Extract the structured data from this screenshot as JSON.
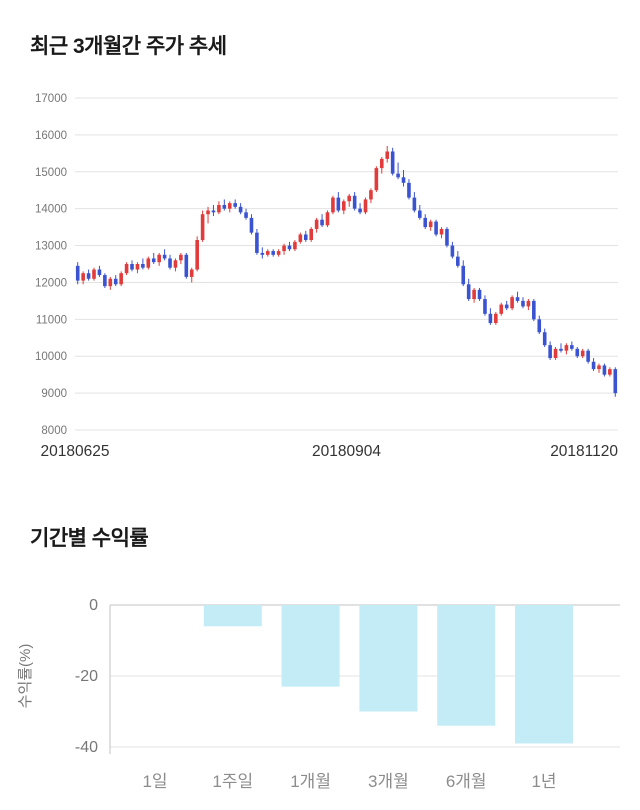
{
  "sections": {
    "price_trend": {
      "title": "최근 3개월간 주가 추세"
    },
    "returns": {
      "title": "기간별 수익률"
    }
  },
  "colors": {
    "candle_up": "#e13b3b",
    "candle_down": "#3a53d0",
    "grid": "#e3e3e3",
    "zero_line": "#c3c3c3",
    "axis_text": "#777777",
    "date_text": "#333333",
    "category_text": "#8c8c8c",
    "bar_fill": "#c3ecf7"
  },
  "chart_data": [
    {
      "type": "candlestick",
      "title": "최근 3개월간 주가 추세",
      "ylim": [
        8000,
        17000
      ],
      "yticks": [
        8000,
        9000,
        10000,
        11000,
        12000,
        13000,
        14000,
        15000,
        16000,
        17000
      ],
      "xticks": [
        "20180625",
        "20180904",
        "20181120"
      ],
      "legend_position": "none",
      "grid": true,
      "up_color": "#e13b3b",
      "down_color": "#3a53d0",
      "candles": [
        [
          12450,
          12550,
          11950,
          12050
        ],
        [
          12050,
          12300,
          11950,
          12250
        ],
        [
          12250,
          12350,
          12050,
          12100
        ],
        [
          12100,
          12400,
          12050,
          12350
        ],
        [
          12350,
          12450,
          12150,
          12200
        ],
        [
          12200,
          12250,
          11850,
          11900
        ],
        [
          11900,
          12150,
          11800,
          12100
        ],
        [
          12100,
          12200,
          11900,
          11950
        ],
        [
          11950,
          12300,
          11900,
          12250
        ],
        [
          12250,
          12550,
          12200,
          12500
        ],
        [
          12500,
          12600,
          12300,
          12350
        ],
        [
          12350,
          12550,
          12250,
          12500
        ],
        [
          12500,
          12650,
          12350,
          12400
        ],
        [
          12400,
          12700,
          12350,
          12650
        ],
        [
          12650,
          12800,
          12500,
          12550
        ],
        [
          12550,
          12800,
          12450,
          12750
        ],
        [
          12750,
          12900,
          12600,
          12650
        ],
        [
          12650,
          12750,
          12350,
          12400
        ],
        [
          12400,
          12650,
          12300,
          12600
        ],
        [
          12600,
          12800,
          12500,
          12750
        ],
        [
          12750,
          12800,
          12100,
          12150
        ],
        [
          12150,
          12400,
          12000,
          12350
        ],
        [
          12350,
          13250,
          12300,
          13150
        ],
        [
          13150,
          13950,
          13100,
          13850
        ],
        [
          13850,
          14050,
          13600,
          13950
        ],
        [
          13950,
          14100,
          13800,
          13900
        ],
        [
          13900,
          14200,
          13850,
          14100
        ],
        [
          14100,
          14250,
          13950,
          14000
        ],
        [
          14000,
          14200,
          13900,
          14150
        ],
        [
          14150,
          14250,
          14000,
          14050
        ],
        [
          14050,
          14150,
          13850,
          13900
        ],
        [
          13900,
          14000,
          13700,
          13750
        ],
        [
          13750,
          13850,
          13300,
          13350
        ],
        [
          13350,
          13450,
          12750,
          12800
        ],
        [
          12800,
          12950,
          12650,
          12750
        ],
        [
          12750,
          12900,
          12700,
          12850
        ],
        [
          12850,
          12900,
          12700,
          12750
        ],
        [
          12750,
          12900,
          12700,
          12850
        ],
        [
          12850,
          13050,
          12750,
          13000
        ],
        [
          13000,
          13100,
          12850,
          12900
        ],
        [
          12900,
          13150,
          12850,
          13100
        ],
        [
          13100,
          13350,
          13050,
          13300
        ],
        [
          13300,
          13400,
          13100,
          13150
        ],
        [
          13150,
          13500,
          13100,
          13450
        ],
        [
          13450,
          13750,
          13350,
          13700
        ],
        [
          13700,
          13850,
          13500,
          13550
        ],
        [
          13550,
          13950,
          13500,
          13900
        ],
        [
          13900,
          14350,
          13850,
          14300
        ],
        [
          14300,
          14450,
          13900,
          13950
        ],
        [
          13950,
          14250,
          13850,
          14200
        ],
        [
          14200,
          14400,
          14050,
          14350
        ],
        [
          14350,
          14450,
          13950,
          14000
        ],
        [
          14000,
          14150,
          13850,
          13900
        ],
        [
          13900,
          14300,
          13850,
          14250
        ],
        [
          14250,
          14550,
          14150,
          14500
        ],
        [
          14500,
          15150,
          14450,
          15100
        ],
        [
          15100,
          15400,
          14950,
          15350
        ],
        [
          15350,
          15700,
          15250,
          15550
        ],
        [
          15550,
          15650,
          14900,
          14950
        ],
        [
          14950,
          15250,
          14800,
          14850
        ],
        [
          14850,
          15050,
          14600,
          14700
        ],
        [
          14700,
          14800,
          14250,
          14300
        ],
        [
          14300,
          14450,
          13900,
          13950
        ],
        [
          13950,
          14100,
          13700,
          13750
        ],
        [
          13750,
          13850,
          13450,
          13500
        ],
        [
          13500,
          13700,
          13400,
          13650
        ],
        [
          13650,
          13700,
          13250,
          13300
        ],
        [
          13300,
          13500,
          13200,
          13450
        ],
        [
          13450,
          13500,
          12950,
          13000
        ],
        [
          13000,
          13100,
          12650,
          12700
        ],
        [
          12700,
          12850,
          12400,
          12450
        ],
        [
          12450,
          12600,
          11900,
          11950
        ],
        [
          11950,
          12100,
          11500,
          11550
        ],
        [
          11550,
          11850,
          11450,
          11800
        ],
        [
          11800,
          11850,
          11500,
          11550
        ],
        [
          11550,
          11650,
          11100,
          11150
        ],
        [
          11150,
          11300,
          10850,
          10900
        ],
        [
          10900,
          11200,
          10850,
          11150
        ],
        [
          11150,
          11450,
          11100,
          11400
        ],
        [
          11400,
          11500,
          11250,
          11300
        ],
        [
          11300,
          11650,
          11250,
          11600
        ],
        [
          11600,
          11750,
          11450,
          11500
        ],
        [
          11500,
          11600,
          11300,
          11350
        ],
        [
          11350,
          11550,
          11250,
          11500
        ],
        [
          11500,
          11550,
          10950,
          11000
        ],
        [
          11000,
          11100,
          10600,
          10650
        ],
        [
          10650,
          10750,
          10250,
          10300
        ],
        [
          10300,
          10400,
          9900,
          9950
        ],
        [
          9950,
          10250,
          9900,
          10200
        ],
        [
          10200,
          10350,
          10100,
          10150
        ],
        [
          10150,
          10350,
          10050,
          10300
        ],
        [
          10300,
          10400,
          10150,
          10200
        ],
        [
          10200,
          10250,
          9950,
          10000
        ],
        [
          10000,
          10200,
          9950,
          10150
        ],
        [
          10150,
          10200,
          9800,
          9850
        ],
        [
          9850,
          9950,
          9600,
          9650
        ],
        [
          9650,
          9800,
          9550,
          9750
        ],
        [
          9750,
          9800,
          9450,
          9500
        ],
        [
          9500,
          9700,
          9450,
          9650
        ],
        [
          9650,
          9700,
          8900,
          9000
        ]
      ]
    },
    {
      "type": "bar",
      "title": "기간별 수익률",
      "categories": [
        "1일",
        "1주일",
        "1개월",
        "3개월",
        "6개월",
        "1년"
      ],
      "values": [
        0,
        -6,
        -23,
        -30,
        -34,
        -39
      ],
      "ylabel": "수익률(%)",
      "xlabel": "",
      "yticks": [
        0,
        -20,
        -40
      ],
      "ylim": [
        -42,
        0
      ],
      "grid": true,
      "legend_position": "none",
      "bar_color": "#c3ecf7"
    }
  ]
}
